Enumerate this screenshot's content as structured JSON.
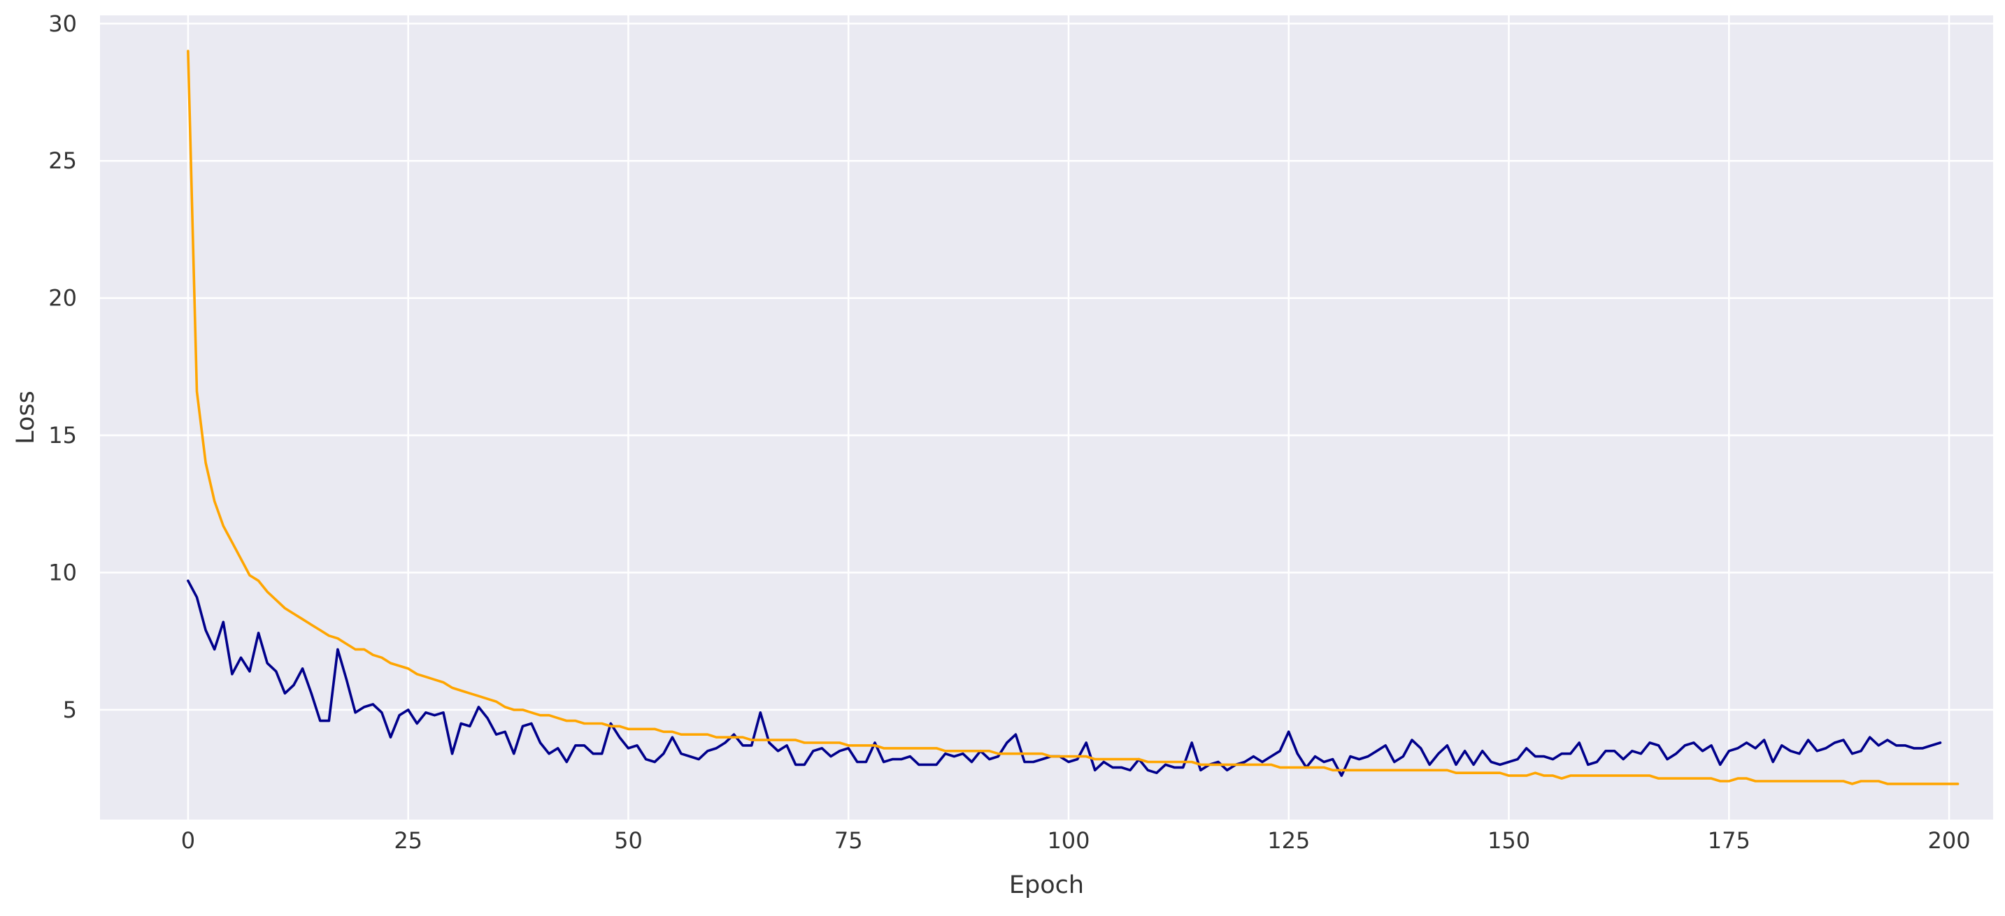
{
  "chart_data": {
    "type": "line",
    "title": "",
    "xlabel": "Epoch",
    "ylabel": "Loss",
    "xlim": [
      -10,
      205
    ],
    "ylim": [
      1,
      30.3
    ],
    "grid": true,
    "legend": "none",
    "background": "#eaeaf2",
    "grid_color": "#ffffff",
    "xticks": [
      0,
      25,
      50,
      75,
      100,
      125,
      150,
      175,
      200
    ],
    "yticks": [
      5,
      10,
      15,
      20,
      25,
      30
    ],
    "series": [
      {
        "color": "#00008b",
        "values": [
          9.7,
          9.1,
          7.9,
          7.2,
          8.2,
          6.3,
          6.9,
          6.4,
          7.8,
          6.7,
          6.4,
          5.6,
          5.9,
          6.5,
          5.6,
          4.6,
          4.6,
          7.2,
          6.1,
          4.9,
          5.1,
          5.2,
          4.9,
          4.0,
          4.8,
          5.0,
          4.5,
          4.9,
          4.8,
          4.9,
          3.4,
          4.5,
          4.4,
          5.1,
          4.7,
          4.1,
          4.2,
          3.4,
          4.4,
          4.5,
          3.8,
          3.4,
          3.6,
          3.1,
          3.7,
          3.7,
          3.4,
          3.4,
          4.5,
          4.0,
          3.6,
          3.7,
          3.2,
          3.1,
          3.4,
          4.0,
          3.4,
          3.3,
          3.2,
          3.5,
          3.6,
          3.8,
          4.1,
          3.7,
          3.7,
          4.9,
          3.8,
          3.5,
          3.7,
          3.0,
          3.0,
          3.5,
          3.6,
          3.3,
          3.5,
          3.6,
          3.1,
          3.1,
          3.8,
          3.1,
          3.2,
          3.2,
          3.3,
          3.0,
          3.0,
          3.0,
          3.4,
          3.3,
          3.4,
          3.1,
          3.5,
          3.2,
          3.3,
          3.8,
          4.1,
          3.1,
          3.1,
          3.2,
          3.3,
          3.3,
          3.1,
          3.2,
          3.8,
          2.8,
          3.1,
          2.9,
          2.9,
          2.8,
          3.2,
          2.8,
          2.7,
          3.0,
          2.9,
          2.9,
          3.8,
          2.8,
          3.0,
          3.1,
          2.8,
          3.0,
          3.1,
          3.3,
          3.1,
          3.3,
          3.5,
          4.2,
          3.4,
          2.9,
          3.3,
          3.1,
          3.2,
          2.6,
          3.3,
          3.2,
          3.3,
          3.5,
          3.7,
          3.1,
          3.3,
          3.9,
          3.6,
          3.0,
          3.4,
          3.7,
          3.0,
          3.5,
          3.0,
          3.5,
          3.1,
          3.0,
          3.1,
          3.2,
          3.6,
          3.3,
          3.3,
          3.2,
          3.4,
          3.4,
          3.8,
          3.0,
          3.1,
          3.5,
          3.5,
          3.2,
          3.5,
          3.4,
          3.8,
          3.7,
          3.2,
          3.4,
          3.7,
          3.8,
          3.5,
          3.7,
          3.0,
          3.5,
          3.6,
          3.8,
          3.6,
          3.9,
          3.1,
          3.7,
          3.5,
          3.4,
          3.9,
          3.5,
          3.6,
          3.8,
          3.9,
          3.4,
          3.5,
          4.0,
          3.7,
          3.9,
          3.7,
          3.7,
          3.6,
          3.6,
          3.7,
          3.8
        ]
      },
      {
        "color": "#ffa500",
        "values": [
          29.0,
          16.6,
          14.0,
          12.6,
          11.7,
          11.1,
          10.5,
          9.9,
          9.7,
          9.3,
          9.0,
          8.7,
          8.5,
          8.3,
          8.1,
          7.9,
          7.7,
          7.6,
          7.4,
          7.2,
          7.2,
          7.0,
          6.9,
          6.7,
          6.6,
          6.5,
          6.3,
          6.2,
          6.1,
          6.0,
          5.8,
          5.7,
          5.6,
          5.5,
          5.4,
          5.3,
          5.1,
          5.0,
          5.0,
          4.9,
          4.8,
          4.8,
          4.7,
          4.6,
          4.6,
          4.5,
          4.5,
          4.5,
          4.4,
          4.4,
          4.3,
          4.3,
          4.3,
          4.3,
          4.2,
          4.2,
          4.1,
          4.1,
          4.1,
          4.1,
          4.0,
          4.0,
          4.0,
          4.0,
          3.9,
          3.9,
          3.9,
          3.9,
          3.9,
          3.9,
          3.8,
          3.8,
          3.8,
          3.8,
          3.8,
          3.7,
          3.7,
          3.7,
          3.7,
          3.6,
          3.6,
          3.6,
          3.6,
          3.6,
          3.6,
          3.6,
          3.5,
          3.5,
          3.5,
          3.5,
          3.5,
          3.5,
          3.4,
          3.4,
          3.4,
          3.4,
          3.4,
          3.4,
          3.3,
          3.3,
          3.3,
          3.3,
          3.3,
          3.2,
          3.2,
          3.2,
          3.2,
          3.2,
          3.2,
          3.1,
          3.1,
          3.1,
          3.1,
          3.1,
          3.1,
          3.0,
          3.0,
          3.0,
          3.0,
          3.0,
          3.0,
          3.0,
          3.0,
          3.0,
          2.9,
          2.9,
          2.9,
          2.9,
          2.9,
          2.9,
          2.8,
          2.8,
          2.8,
          2.8,
          2.8,
          2.8,
          2.8,
          2.8,
          2.8,
          2.8,
          2.8,
          2.8,
          2.8,
          2.8,
          2.7,
          2.7,
          2.7,
          2.7,
          2.7,
          2.7,
          2.6,
          2.6,
          2.6,
          2.7,
          2.6,
          2.6,
          2.5,
          2.6,
          2.6,
          2.6,
          2.6,
          2.6,
          2.6,
          2.6,
          2.6,
          2.6,
          2.6,
          2.5,
          2.5,
          2.5,
          2.5,
          2.5,
          2.5,
          2.5,
          2.4,
          2.4,
          2.5,
          2.5,
          2.4,
          2.4,
          2.4,
          2.4,
          2.4,
          2.4,
          2.4,
          2.4,
          2.4,
          2.4,
          2.4,
          2.3,
          2.4,
          2.4,
          2.4,
          2.3,
          2.3,
          2.3,
          2.3,
          2.3,
          2.3,
          2.3,
          2.3,
          2.3
        ]
      }
    ]
  }
}
